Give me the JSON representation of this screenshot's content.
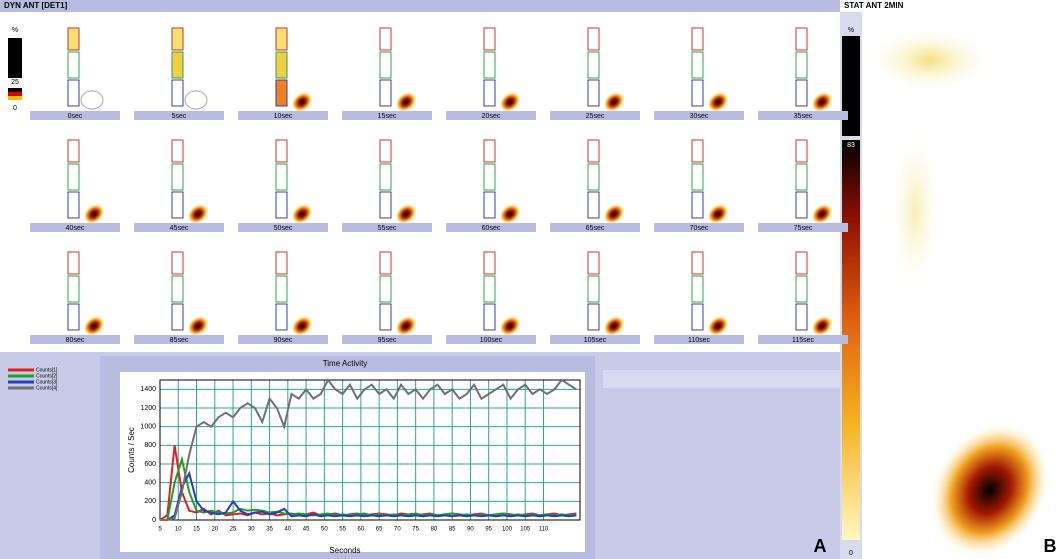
{
  "header": {
    "left_title": "DYN ANT [DET1]",
    "right_title": "STAT ANT 2MIN"
  },
  "colorbar": {
    "left": [
      "%",
      "25",
      "0"
    ],
    "right": [
      "%",
      "83",
      "0"
    ]
  },
  "frames": {
    "labels": [
      "0sec",
      "5sec",
      "10sec",
      "15sec",
      "20sec",
      "25sec",
      "30sec",
      "35sec",
      "40sec",
      "45sec",
      "50sec",
      "55sec",
      "60sec",
      "65sec",
      "70sec",
      "75sec",
      "80sec",
      "85sec",
      "90sec",
      "95sec",
      "100sec",
      "105sec",
      "110sec",
      "115sec"
    ]
  },
  "panel_labels": [
    "A",
    "B"
  ],
  "chart_data": {
    "type": "line",
    "title": "Time Activity",
    "x_label": "Seconds",
    "y_label": "Counts / Sec",
    "x": [
      5,
      7,
      9,
      11,
      13,
      15,
      17,
      19,
      21,
      23,
      25,
      27,
      29,
      31,
      33,
      35,
      37,
      39,
      41,
      43,
      45,
      47,
      49,
      51,
      53,
      55,
      57,
      59,
      61,
      63,
      65,
      67,
      69,
      71,
      73,
      75,
      77,
      79,
      81,
      83,
      85,
      87,
      89,
      91,
      93,
      95,
      97,
      99,
      101,
      103,
      105,
      107,
      109,
      111,
      113,
      115,
      117,
      119
    ],
    "xlim": [
      5,
      120
    ],
    "xticks": [
      5,
      10,
      15,
      20,
      25,
      30,
      35,
      40,
      45,
      50,
      55,
      60,
      65,
      70,
      75,
      80,
      85,
      90,
      95,
      100,
      105,
      110
    ],
    "ylim": [
      0,
      1500
    ],
    "yticks": [
      0,
      200,
      400,
      600,
      800,
      1000,
      1200,
      1400
    ],
    "grid": true,
    "series": [
      {
        "name": "Counts[1]",
        "color": "#e02020",
        "values": [
          0,
          50,
          800,
          300,
          100,
          80,
          120,
          60,
          100,
          50,
          60,
          70,
          50,
          80,
          60,
          70,
          50,
          60,
          70,
          50,
          60,
          80,
          50,
          60,
          70,
          50,
          60,
          70,
          50,
          60,
          70,
          60,
          50,
          70,
          60,
          50,
          60,
          70,
          50,
          60,
          70,
          60,
          50,
          60,
          70,
          50,
          60,
          70,
          60,
          50,
          60,
          70,
          50,
          60,
          70,
          50,
          60,
          70
        ]
      },
      {
        "name": "Counts[2]",
        "color": "#20a020",
        "values": [
          0,
          0,
          400,
          650,
          300,
          100,
          80,
          100,
          80,
          70,
          80,
          120,
          100,
          110,
          100,
          80,
          90,
          70,
          60,
          70,
          60,
          50,
          60,
          70,
          50,
          60,
          50,
          60,
          70,
          50,
          60,
          50,
          60,
          50,
          60,
          70,
          50,
          60,
          50,
          60,
          70,
          50,
          60,
          50,
          60,
          50,
          60,
          70,
          50,
          60,
          50,
          60,
          50,
          60,
          50,
          60,
          50,
          60
        ]
      },
      {
        "name": "Counts[3]",
        "color": "#2040c0",
        "values": [
          0,
          0,
          50,
          350,
          500,
          200,
          100,
          80,
          60,
          80,
          200,
          100,
          60,
          80,
          90,
          60,
          80,
          120,
          40,
          50,
          40,
          60,
          40,
          50,
          40,
          50,
          40,
          50,
          40,
          50,
          40,
          50,
          40,
          50,
          40,
          50,
          40,
          50,
          40,
          50,
          40,
          50,
          40,
          50,
          40,
          50,
          40,
          50,
          40,
          50,
          40,
          50,
          40,
          50,
          40,
          50,
          40,
          50
        ]
      },
      {
        "name": "Counts[4]",
        "color": "#707070",
        "values": [
          0,
          0,
          20,
          300,
          700,
          1000,
          1050,
          1000,
          1100,
          1150,
          1100,
          1200,
          1250,
          1200,
          1050,
          1300,
          1200,
          1000,
          1350,
          1300,
          1400,
          1300,
          1350,
          1500,
          1400,
          1350,
          1450,
          1300,
          1400,
          1450,
          1350,
          1400,
          1300,
          1450,
          1350,
          1400,
          1300,
          1400,
          1450,
          1350,
          1400,
          1300,
          1350,
          1450,
          1300,
          1350,
          1400,
          1450,
          1300,
          1400,
          1450,
          1350,
          1400,
          1350,
          1400,
          1500,
          1450,
          1400
        ]
      }
    ]
  }
}
